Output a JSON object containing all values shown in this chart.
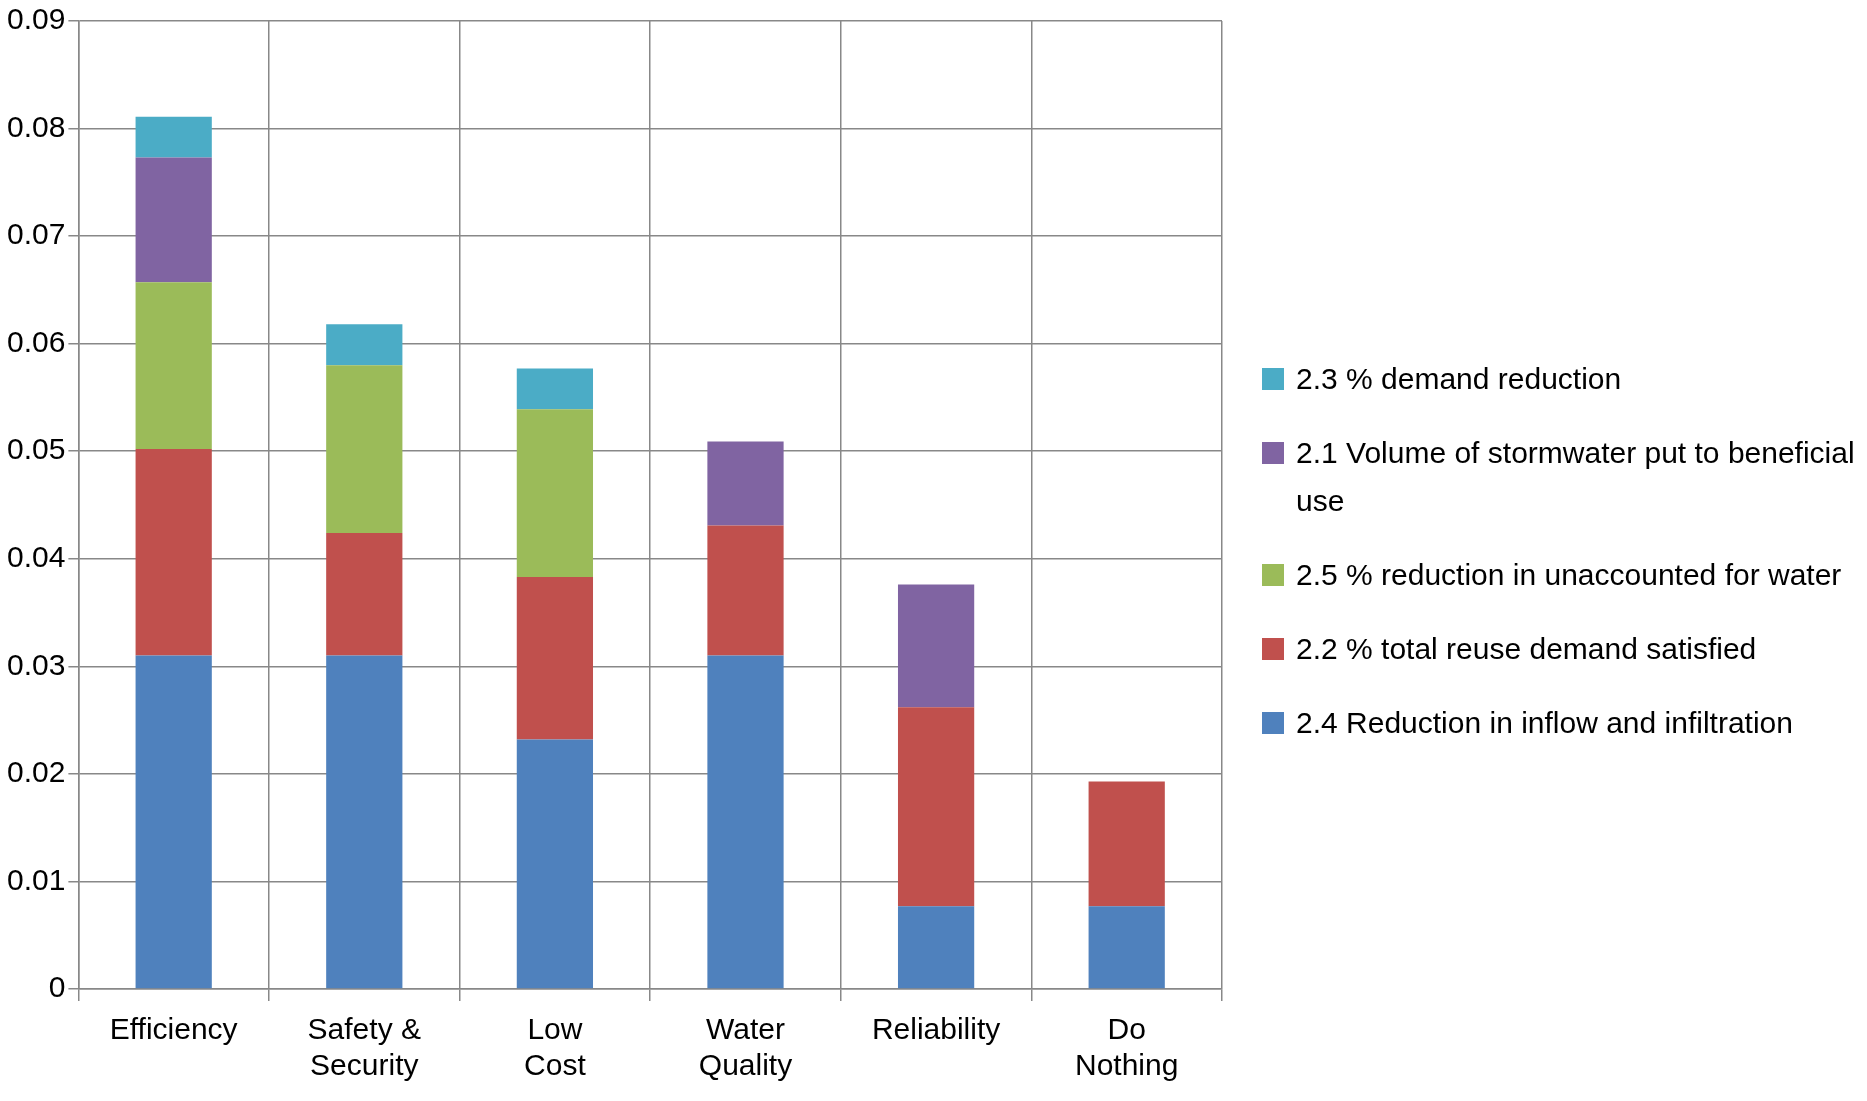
{
  "chart_data": {
    "type": "bar",
    "stacked": true,
    "categories": [
      "Efficiency",
      "Safety & Security",
      "Low Cost",
      "Water Quality",
      "Reliability",
      "Do Nothing"
    ],
    "series": [
      {
        "name": "2.4 Reduction in inflow and infiltration",
        "color": "#4f81bd",
        "values": [
          0.031,
          0.031,
          0.0232,
          0.031,
          0.0077,
          0.0077
        ]
      },
      {
        "name": "2.2 % total reuse demand satisfied",
        "color": "#c0504d",
        "values": [
          0.0192,
          0.0114,
          0.0151,
          0.0121,
          0.0185,
          0.0116
        ]
      },
      {
        "name": "2.5 % reduction in unaccounted for water",
        "color": "#9bbb59",
        "values": [
          0.0155,
          0.0156,
          0.0156,
          null,
          null,
          null
        ]
      },
      {
        "name": "2.1 Volume of stormwater put to beneficial use",
        "color": "#8064a2",
        "values": [
          0.0116,
          null,
          null,
          0.0078,
          0.0114,
          null
        ]
      },
      {
        "name": "2.3 % demand reduction",
        "color": "#4bacc6",
        "values": [
          0.0038,
          0.0038,
          0.0038,
          null,
          null,
          null
        ]
      }
    ],
    "ylim": [
      0,
      0.09
    ],
    "yticks": [
      0,
      0.01,
      0.02,
      0.03,
      0.04,
      0.05,
      0.06,
      0.07,
      0.08,
      0.09
    ],
    "grid": true,
    "legend": "right"
  }
}
